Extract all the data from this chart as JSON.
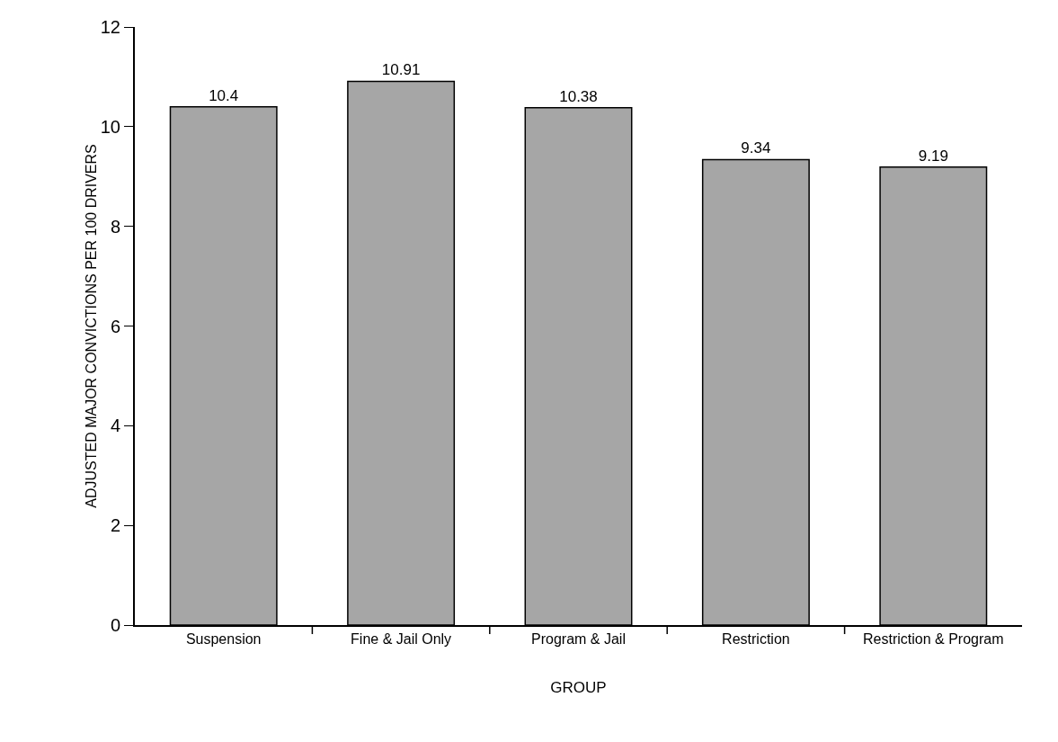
{
  "chart_data": {
    "type": "bar",
    "xlabel": "GROUP",
    "ylabel": "ADJUSTED MAJOR CONVICTIONS PER 100 DRIVERS",
    "categories": [
      "Suspension",
      "Fine & Jail Only",
      "Program & Jail",
      "Restriction",
      "Restriction & Program"
    ],
    "values": [
      10.4,
      10.91,
      10.38,
      9.34,
      9.19
    ],
    "color": "#a6a6a6",
    "ylim": [
      0,
      12
    ],
    "yticks": [
      0,
      2,
      4,
      6,
      8,
      10,
      12
    ],
    "grid": false,
    "data_labels": true
  }
}
